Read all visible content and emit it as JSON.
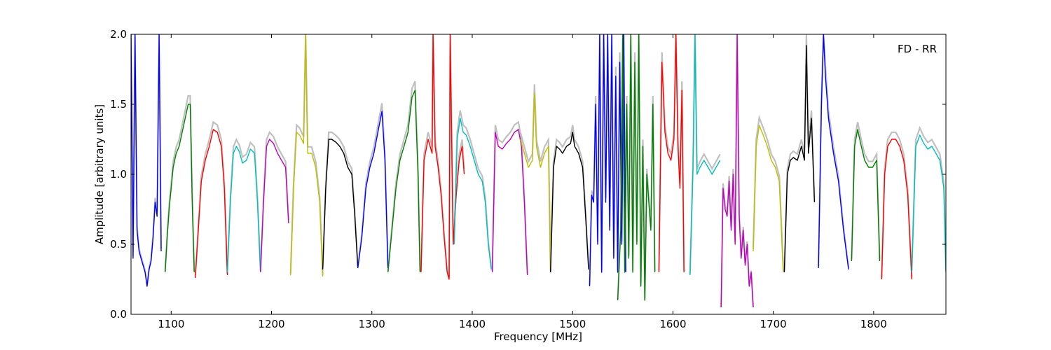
{
  "chart_data": {
    "type": "line",
    "annotation": "FD - RR",
    "xlabel": "Frequency [MHz]",
    "ylabel": "Amplitude [arbitrary units]",
    "xlim": [
      1060,
      1872
    ],
    "ylim": [
      0,
      2.0
    ],
    "x_ticks": [
      1100,
      1200,
      1300,
      1400,
      1500,
      1600,
      1700,
      1800
    ],
    "x_tick_labels": [
      "1100",
      "1200",
      "1300",
      "1400",
      "1500",
      "1600",
      "1700",
      "1800"
    ],
    "y_ticks": [
      0.0,
      0.5,
      1.0,
      1.5,
      2.0
    ],
    "y_tick_labels": [
      "0.0",
      "0.5",
      "1.0",
      "1.5",
      "2.0"
    ],
    "grid": false,
    "series": [
      {
        "color": "#0000ff",
        "x": [
          1060,
          1062,
          1064,
          1066,
          1068,
          1070,
          1072,
          1074,
          1076,
          1078,
          1080,
          1082,
          1084,
          1086,
          1088,
          1090
        ],
        "y": [
          2.0,
          0.4,
          2.0,
          0.6,
          0.45,
          0.4,
          0.35,
          0.3,
          0.2,
          0.32,
          0.38,
          0.55,
          0.8,
          0.7,
          2.0,
          0.45
        ]
      },
      {
        "color": "#008000",
        "x": [
          1094,
          1096,
          1098,
          1100,
          1102,
          1105,
          1108,
          1111,
          1114,
          1117,
          1119,
          1121,
          1123
        ],
        "y": [
          0.3,
          0.55,
          0.75,
          0.9,
          1.05,
          1.15,
          1.2,
          1.3,
          1.4,
          1.5,
          1.5,
          0.8,
          0.3
        ]
      },
      {
        "color": "#ff0000",
        "x": [
          1124,
          1127,
          1130,
          1134,
          1138,
          1142,
          1146,
          1150,
          1153,
          1156
        ],
        "y": [
          0.26,
          0.6,
          0.95,
          1.1,
          1.2,
          1.32,
          1.3,
          1.2,
          0.9,
          0.28
        ]
      },
      {
        "color": "#00bfbf",
        "x": [
          1156,
          1159,
          1162,
          1165,
          1168,
          1171,
          1175,
          1179,
          1183,
          1186,
          1189
        ],
        "y": [
          0.3,
          0.8,
          1.15,
          1.2,
          1.16,
          1.08,
          1.1,
          1.18,
          1.15,
          0.8,
          0.3
        ]
      },
      {
        "color": "#bf00bf",
        "x": [
          1189,
          1192,
          1195,
          1198,
          1202,
          1206,
          1210,
          1214,
          1217
        ],
        "y": [
          0.3,
          0.8,
          1.2,
          1.25,
          1.22,
          1.15,
          1.1,
          1.05,
          0.65
        ]
      },
      {
        "color": "#bfbf00",
        "x": [
          1219,
          1222,
          1225,
          1228,
          1232,
          1234,
          1236,
          1240,
          1244,
          1248,
          1251
        ],
        "y": [
          0.28,
          0.9,
          1.3,
          1.28,
          1.22,
          2.0,
          1.15,
          1.15,
          1.05,
          0.8,
          0.27
        ]
      },
      {
        "color": "#000000",
        "x": [
          1251,
          1254,
          1257,
          1260,
          1264,
          1268,
          1272,
          1276,
          1280,
          1283,
          1286
        ],
        "y": [
          0.32,
          0.9,
          1.25,
          1.25,
          1.23,
          1.2,
          1.15,
          1.05,
          1.0,
          0.7,
          0.33
        ]
      },
      {
        "color": "#0000ff",
        "x": [
          1286,
          1290,
          1294,
          1298,
          1302,
          1306,
          1310,
          1313,
          1316
        ],
        "y": [
          0.33,
          0.55,
          0.9,
          1.05,
          1.15,
          1.3,
          1.45,
          1.1,
          0.33
        ]
      },
      {
        "color": "#008000",
        "x": [
          1316,
          1320,
          1324,
          1328,
          1332,
          1336,
          1340,
          1343,
          1346,
          1348
        ],
        "y": [
          0.3,
          0.6,
          0.9,
          1.1,
          1.2,
          1.3,
          1.55,
          1.6,
          1.0,
          0.3
        ]
      },
      {
        "color": "#ff0000",
        "x": [
          1349,
          1352,
          1356,
          1360,
          1361,
          1363,
          1366,
          1369,
          1372,
          1375,
          1377,
          1378,
          1381,
          1384,
          1387,
          1390,
          1392
        ],
        "y": [
          0.3,
          1.1,
          1.25,
          1.15,
          2.0,
          1.2,
          1.05,
          0.85,
          0.55,
          0.3,
          0.25,
          2.0,
          0.5,
          0.85,
          1.1,
          1.2,
          1.0
        ]
      },
      {
        "color": "#00bfbf",
        "x": [
          1382,
          1385,
          1388,
          1391,
          1394,
          1398,
          1402,
          1406,
          1410,
          1413,
          1416,
          1419
        ],
        "y": [
          0.5,
          1.25,
          1.4,
          1.3,
          1.28,
          1.2,
          1.1,
          1.0,
          0.95,
          0.8,
          0.5,
          0.32
        ]
      },
      {
        "color": "#bf00bf",
        "x": [
          1420,
          1423,
          1426,
          1430,
          1434,
          1438,
          1442,
          1446,
          1449,
          1452,
          1455
        ],
        "y": [
          0.3,
          1.3,
          1.2,
          1.18,
          1.22,
          1.25,
          1.3,
          1.32,
          1.2,
          0.8,
          0.28
        ]
      },
      {
        "color": "#bfbf00",
        "x": [
          1448,
          1452,
          1456,
          1460,
          1462,
          1464,
          1468,
          1472,
          1476,
          1478
        ],
        "y": [
          1.25,
          1.15,
          1.05,
          1.1,
          1.58,
          1.2,
          1.05,
          1.15,
          1.2,
          0.3
        ]
      },
      {
        "color": "#000000",
        "x": [
          1478,
          1481,
          1484,
          1487,
          1490,
          1494,
          1498,
          1500,
          1502,
          1506,
          1510,
          1513,
          1516
        ],
        "y": [
          0.3,
          1.05,
          1.2,
          1.18,
          1.15,
          1.2,
          1.22,
          1.3,
          1.2,
          1.15,
          1.05,
          0.7,
          0.32
        ]
      },
      {
        "color": "#0000ff",
        "x": [
          1517,
          1519,
          1521,
          1523,
          1525,
          1527,
          1529,
          1531,
          1533,
          1535,
          1537,
          1539,
          1541,
          1543,
          1545,
          1547,
          1549,
          1551,
          1553
        ],
        "y": [
          0.2,
          0.85,
          0.8,
          1.5,
          0.5,
          2.0,
          0.3,
          2.0,
          0.8,
          2.0,
          0.6,
          2.0,
          0.4,
          1.7,
          0.3,
          1.8,
          0.5,
          2.0,
          0.3
        ]
      },
      {
        "color": "#008000",
        "x": [
          1545,
          1548,
          1550,
          1552,
          1554,
          1556,
          1558,
          1560,
          1562,
          1564,
          1566,
          1568,
          1570,
          1572,
          1574,
          1576,
          1578,
          1580,
          1582
        ],
        "y": [
          0.1,
          0.6,
          2.0,
          0.3,
          1.5,
          0.4,
          2.0,
          0.3,
          1.8,
          0.5,
          2.0,
          0.2,
          1.2,
          0.1,
          1.0,
          0.8,
          0.6,
          1.5,
          0.3
        ]
      },
      {
        "color": "#ff0000",
        "x": [
          1586,
          1589,
          1592,
          1595,
          1598,
          1601,
          1603,
          1605,
          1607,
          1609,
          1611
        ],
        "y": [
          0.3,
          1.8,
          1.3,
          1.15,
          1.1,
          1.25,
          2.0,
          1.2,
          0.9,
          1.6,
          0.3
        ]
      },
      {
        "color": "#00bfbf",
        "x": [
          1617,
          1620,
          1622,
          1624,
          1627,
          1631,
          1635,
          1639,
          1643,
          1647
        ],
        "y": [
          0.28,
          1.05,
          2.0,
          1.0,
          1.05,
          1.1,
          1.05,
          1.0,
          1.05,
          1.1
        ]
      },
      {
        "color": "#bf00bf",
        "x": [
          1648,
          1650,
          1652,
          1654,
          1656,
          1658,
          1660,
          1662,
          1664,
          1666,
          1668,
          1670,
          1672,
          1674,
          1676,
          1678,
          1680
        ],
        "y": [
          0.05,
          0.9,
          0.75,
          0.7,
          0.95,
          0.6,
          1.0,
          0.5,
          2.0,
          0.7,
          0.4,
          0.6,
          0.35,
          0.5,
          0.2,
          0.3,
          0.05
        ]
      },
      {
        "color": "#bfbf00",
        "x": [
          1680,
          1683,
          1686,
          1690,
          1694,
          1698,
          1702,
          1706,
          1710
        ],
        "y": [
          0.45,
          1.2,
          1.35,
          1.28,
          1.2,
          1.1,
          1.05,
          0.95,
          0.3
        ]
      },
      {
        "color": "#000000",
        "x": [
          1711,
          1714,
          1717,
          1720,
          1724,
          1728,
          1731,
          1733,
          1735,
          1738,
          1741
        ],
        "y": [
          0.3,
          1.0,
          1.1,
          1.12,
          1.1,
          1.2,
          1.1,
          1.92,
          1.15,
          1.4,
          0.8
        ]
      },
      {
        "color": "#0000ff",
        "x": [
          1745,
          1748,
          1750,
          1752,
          1755,
          1760,
          1765,
          1770,
          1775
        ],
        "y": [
          0.33,
          1.5,
          2.0,
          1.7,
          1.4,
          1.15,
          0.95,
          0.6,
          0.32
        ]
      },
      {
        "color": "#008000",
        "x": [
          1778,
          1781,
          1784,
          1787,
          1791,
          1795,
          1799,
          1803,
          1806
        ],
        "y": [
          0.38,
          1.2,
          1.32,
          1.22,
          1.1,
          1.05,
          1.05,
          1.1,
          0.38
        ]
      },
      {
        "color": "#ff0000",
        "x": [
          1808,
          1811,
          1814,
          1818,
          1822,
          1826,
          1830,
          1834,
          1838
        ],
        "y": [
          0.25,
          1.0,
          1.2,
          1.25,
          1.25,
          1.2,
          1.1,
          0.85,
          0.25
        ]
      },
      {
        "color": "#00bfbf",
        "x": [
          1838,
          1842,
          1846,
          1850,
          1854,
          1858,
          1862,
          1866,
          1870,
          1872
        ],
        "y": [
          0.3,
          1.2,
          1.28,
          1.22,
          1.18,
          1.2,
          1.15,
          1.1,
          0.9,
          0.3
        ]
      }
    ]
  }
}
